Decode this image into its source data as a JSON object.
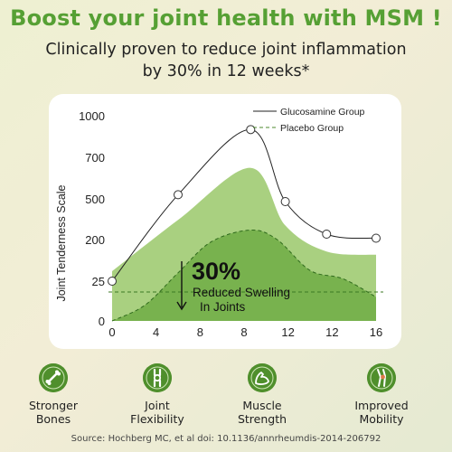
{
  "header": {
    "title": "Boost your joint health with MSM !",
    "subtitle_line1": "Clinically proven to reduce joint inflammation",
    "subtitle_line2": "by 30% in 12 weeks*"
  },
  "colors": {
    "title_green": "#56a034",
    "band_light": "#a9d080",
    "band_dark": "#78b24e",
    "icon_green": "#4f8f2c"
  },
  "chart_data": {
    "type": "line",
    "title": "",
    "xlabel": "",
    "ylabel": "Joint Tenderness Scale",
    "x_ticks": [
      "0",
      "4",
      "8",
      "8",
      "12",
      "12",
      "16"
    ],
    "y_ticks": [
      "0",
      "25",
      "200",
      "500",
      "700",
      "1000"
    ],
    "grid": false,
    "legend_position": "top-right",
    "series": [
      {
        "name": "Glucosamine Group",
        "style": "solid-with-circle-markers",
        "x": [
          0,
          4,
          8.4,
          10.5,
          13,
          16
        ],
        "y": [
          25,
          520,
          900,
          480,
          240,
          210
        ]
      },
      {
        "name": "Placebo Group",
        "style": "dashed",
        "x": [
          0,
          2,
          4,
          6,
          8.4,
          10,
          12,
          14,
          16
        ],
        "y": [
          0,
          10,
          60,
          190,
          270,
          200,
          70,
          35,
          15
        ]
      }
    ],
    "annotation": {
      "value": "30%",
      "line1": "Reduced Swelling",
      "line2": "In Joints"
    }
  },
  "benefits": [
    {
      "icon": "bone-icon",
      "line1": "Stronger",
      "line2": "Bones"
    },
    {
      "icon": "joint-icon",
      "line1": "Joint",
      "line2": "Flexibility"
    },
    {
      "icon": "muscle-icon",
      "line1": "Muscle",
      "line2": "Strength"
    },
    {
      "icon": "knee-icon",
      "line1": "Improved",
      "line2": "Mobility"
    }
  ],
  "footer": {
    "source": "Source: Hochberg MC, et al doi: 10.1136/annrheumdis-2014-206792"
  }
}
